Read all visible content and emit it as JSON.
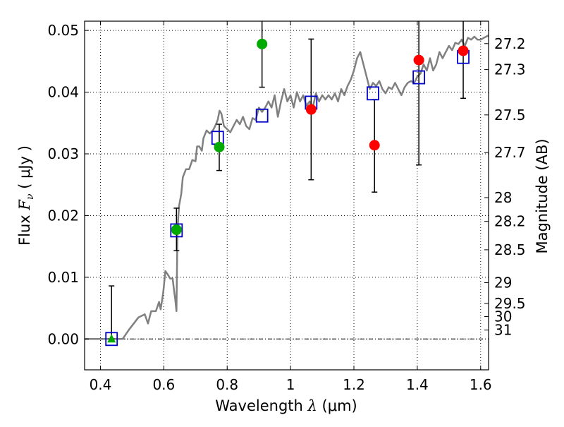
{
  "chart_data": {
    "type": "scatter",
    "xlabel_text": "Wavelength",
    "xlabel_symbol": "λ",
    "xlabel_unit": "(μm)",
    "ylabel_text": "Flux",
    "ylabel_symbol": "F",
    "ylabel_sub": "ν",
    "ylabel_unit": "( μJy )",
    "y2label": "Magnitude (AB)",
    "xlim": [
      0.35,
      1.625
    ],
    "ylim": [
      -0.005,
      0.0515
    ],
    "grid": true,
    "x_ticks": [
      {
        "value": 0.4,
        "label": "0.4"
      },
      {
        "value": 0.6,
        "label": "0.6"
      },
      {
        "value": 0.8,
        "label": "0.8"
      },
      {
        "value": 1.0,
        "label": "1"
      },
      {
        "value": 1.2,
        "label": "1.2"
      },
      {
        "value": 1.4,
        "label": "1.4"
      },
      {
        "value": 1.6,
        "label": "1.6"
      }
    ],
    "y_ticks": [
      {
        "value": 0.0,
        "label": "0.00"
      },
      {
        "value": 0.01,
        "label": "0.01"
      },
      {
        "value": 0.02,
        "label": "0.02"
      },
      {
        "value": 0.03,
        "label": "0.03"
      },
      {
        "value": 0.04,
        "label": "0.04"
      },
      {
        "value": 0.05,
        "label": "0.05"
      }
    ],
    "mag_ticks": [
      {
        "value": 27.2,
        "label": "27.2"
      },
      {
        "value": 27.3,
        "label": "27.3"
      },
      {
        "value": 27.5,
        "label": "27.5"
      },
      {
        "value": 27.7,
        "label": "27.7"
      },
      {
        "value": 28,
        "label": "28"
      },
      {
        "value": 28.2,
        "label": "28.2"
      },
      {
        "value": 28.5,
        "label": "28.5"
      },
      {
        "value": 29,
        "label": "29"
      },
      {
        "value": 29.5,
        "label": "29.5"
      },
      {
        "value": 30,
        "label": "30"
      },
      {
        "value": 31,
        "label": "31"
      }
    ],
    "model_sed": {
      "color": "#808080",
      "points": [
        [
          0.35,
          0.0
        ],
        [
          0.47,
          0.0
        ],
        [
          0.49,
          0.0015
        ],
        [
          0.52,
          0.0035
        ],
        [
          0.54,
          0.004
        ],
        [
          0.55,
          0.0025
        ],
        [
          0.56,
          0.0045
        ],
        [
          0.575,
          0.0045
        ],
        [
          0.585,
          0.006
        ],
        [
          0.59,
          0.0048
        ],
        [
          0.598,
          0.0075
        ],
        [
          0.605,
          0.011
        ],
        [
          0.612,
          0.0105
        ],
        [
          0.62,
          0.0098
        ],
        [
          0.628,
          0.0098
        ],
        [
          0.632,
          0.008
        ],
        [
          0.636,
          0.0065
        ],
        [
          0.64,
          0.0045
        ],
        [
          0.643,
          0.0175
        ],
        [
          0.648,
          0.0215
        ],
        [
          0.655,
          0.0235
        ],
        [
          0.66,
          0.0262
        ],
        [
          0.67,
          0.0275
        ],
        [
          0.68,
          0.0275
        ],
        [
          0.69,
          0.029
        ],
        [
          0.7,
          0.0288
        ],
        [
          0.705,
          0.0312
        ],
        [
          0.712,
          0.0312
        ],
        [
          0.72,
          0.0305
        ],
        [
          0.725,
          0.0325
        ],
        [
          0.735,
          0.0338
        ],
        [
          0.745,
          0.0333
        ],
        [
          0.755,
          0.0338
        ],
        [
          0.762,
          0.0345
        ],
        [
          0.77,
          0.0355
        ],
        [
          0.776,
          0.037
        ],
        [
          0.782,
          0.0365
        ],
        [
          0.79,
          0.0345
        ],
        [
          0.8,
          0.034
        ],
        [
          0.81,
          0.0335
        ],
        [
          0.82,
          0.0345
        ],
        [
          0.83,
          0.0355
        ],
        [
          0.84,
          0.0348
        ],
        [
          0.85,
          0.036
        ],
        [
          0.86,
          0.0345
        ],
        [
          0.87,
          0.034
        ],
        [
          0.88,
          0.0358
        ],
        [
          0.89,
          0.0355
        ],
        [
          0.9,
          0.0375
        ],
        [
          0.91,
          0.0368
        ],
        [
          0.92,
          0.0375
        ],
        [
          0.93,
          0.0385
        ],
        [
          0.94,
          0.0375
        ],
        [
          0.95,
          0.0395
        ],
        [
          0.96,
          0.036
        ],
        [
          0.97,
          0.0385
        ],
        [
          0.98,
          0.0405
        ],
        [
          0.99,
          0.0385
        ],
        [
          1.0,
          0.0395
        ],
        [
          1.01,
          0.0375
        ],
        [
          1.02,
          0.04
        ],
        [
          1.03,
          0.0385
        ],
        [
          1.04,
          0.0395
        ],
        [
          1.05,
          0.0378
        ],
        [
          1.06,
          0.0385
        ],
        [
          1.07,
          0.0375
        ],
        [
          1.08,
          0.0398
        ],
        [
          1.09,
          0.0385
        ],
        [
          1.1,
          0.0395
        ],
        [
          1.11,
          0.0388
        ],
        [
          1.12,
          0.0395
        ],
        [
          1.13,
          0.0388
        ],
        [
          1.14,
          0.0398
        ],
        [
          1.15,
          0.0385
        ],
        [
          1.16,
          0.0405
        ],
        [
          1.17,
          0.0395
        ],
        [
          1.18,
          0.041
        ],
        [
          1.19,
          0.042
        ],
        [
          1.2,
          0.0435
        ],
        [
          1.21,
          0.0455
        ],
        [
          1.22,
          0.0465
        ],
        [
          1.23,
          0.0445
        ],
        [
          1.24,
          0.0425
        ],
        [
          1.25,
          0.0405
        ],
        [
          1.26,
          0.0415
        ],
        [
          1.27,
          0.041
        ],
        [
          1.28,
          0.0418
        ],
        [
          1.29,
          0.0405
        ],
        [
          1.3,
          0.0398
        ],
        [
          1.31,
          0.0408
        ],
        [
          1.32,
          0.0405
        ],
        [
          1.33,
          0.0415
        ],
        [
          1.34,
          0.0405
        ],
        [
          1.35,
          0.0395
        ],
        [
          1.36,
          0.0408
        ],
        [
          1.37,
          0.0415
        ],
        [
          1.38,
          0.0418
        ],
        [
          1.39,
          0.0415
        ],
        [
          1.4,
          0.0425
        ],
        [
          1.41,
          0.043
        ],
        [
          1.42,
          0.0445
        ],
        [
          1.43,
          0.0435
        ],
        [
          1.44,
          0.0455
        ],
        [
          1.45,
          0.0435
        ],
        [
          1.46,
          0.0445
        ],
        [
          1.47,
          0.0465
        ],
        [
          1.48,
          0.0455
        ],
        [
          1.49,
          0.0465
        ],
        [
          1.5,
          0.0475
        ],
        [
          1.51,
          0.0468
        ],
        [
          1.52,
          0.048
        ],
        [
          1.53,
          0.0478
        ],
        [
          1.54,
          0.0485
        ],
        [
          1.55,
          0.0475
        ],
        [
          1.56,
          0.0488
        ],
        [
          1.57,
          0.0485
        ],
        [
          1.58,
          0.049
        ],
        [
          1.59,
          0.0485
        ],
        [
          1.6,
          0.0485
        ],
        [
          1.61,
          0.0488
        ],
        [
          1.625,
          0.0492
        ]
      ]
    },
    "model_bands": {
      "marker": "open-square",
      "color": "#0000cc",
      "points": [
        {
          "x": 0.435,
          "y": 0.0
        },
        {
          "x": 0.64,
          "y": 0.0176
        },
        {
          "x": 0.77,
          "y": 0.0326
        },
        {
          "x": 0.91,
          "y": 0.0362
        },
        {
          "x": 1.065,
          "y": 0.0383
        },
        {
          "x": 1.26,
          "y": 0.0398
        },
        {
          "x": 1.405,
          "y": 0.0424
        },
        {
          "x": 1.545,
          "y": 0.0457
        }
      ]
    },
    "observed": [
      {
        "x": 0.435,
        "y": 0.0,
        "lo": 0.0,
        "hi": 0.0086,
        "marker": "triangle",
        "color": "#00aa00"
      },
      {
        "x": 0.64,
        "y": 0.0177,
        "lo": 0.0143,
        "hi": 0.0212,
        "marker": "circle",
        "color": "#00aa00"
      },
      {
        "x": 0.775,
        "y": 0.0311,
        "lo": 0.0273,
        "hi": 0.0348,
        "marker": "circle",
        "color": "#00aa00"
      },
      {
        "x": 0.91,
        "y": 0.0478,
        "lo": 0.0408,
        "hi": 0.0515,
        "marker": "circle",
        "color": "#00aa00"
      },
      {
        "x": 1.065,
        "y": 0.0372,
        "lo": 0.0258,
        "hi": 0.0486,
        "marker": "circle",
        "color": "#ff0000"
      },
      {
        "x": 1.265,
        "y": 0.0314,
        "lo": 0.0238,
        "hi": 0.0388,
        "marker": "circle",
        "color": "#ff0000"
      },
      {
        "x": 1.405,
        "y": 0.0452,
        "lo": 0.0282,
        "hi": 0.0515,
        "marker": "circle",
        "color": "#ff0000"
      },
      {
        "x": 1.545,
        "y": 0.0467,
        "lo": 0.039,
        "hi": 0.0515,
        "marker": "circle",
        "color": "#ff0000"
      }
    ]
  }
}
